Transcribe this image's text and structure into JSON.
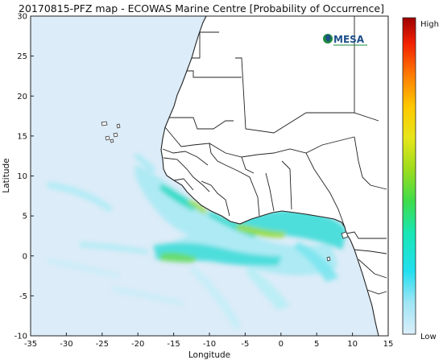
{
  "title": "20170815-PFZ map - ECOWAS Marine Centre [Probability of Occurrence]",
  "logo": {
    "text": "MESA"
  },
  "axes": {
    "xlabel": "Longitude",
    "ylabel": "Latitude",
    "xlim": [
      -35,
      15
    ],
    "ylim": [
      -10,
      30
    ],
    "xticks": [
      -35,
      -30,
      -25,
      -20,
      -15,
      -10,
      -5,
      0,
      5,
      10,
      15
    ],
    "yticks": [
      -10,
      -5,
      0,
      5,
      10,
      15,
      20,
      25,
      30
    ]
  },
  "colorbar": {
    "high_label": "High",
    "low_label": "Low",
    "colors": [
      "#dceefa",
      "#9fe5f5",
      "#22dff0",
      "#19e6b4",
      "#3ddc4b",
      "#9cdc1e",
      "#e6e61a",
      "#ffc800",
      "#ff7a00",
      "#f22000",
      "#9e0000"
    ]
  },
  "colors": {
    "ocean": "#dcecf8",
    "land": "#ffffff",
    "border": "#222222",
    "low_prob": "#9fe8f2",
    "mid_prob": "#3ddcdc",
    "high_prob": "#9fdc40"
  }
}
